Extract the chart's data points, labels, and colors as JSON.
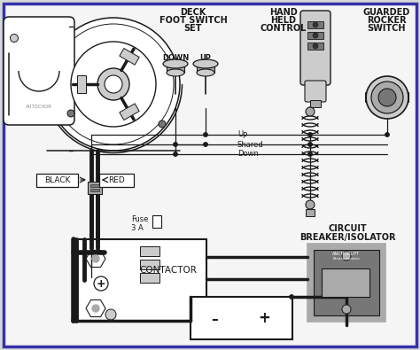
{
  "bg_outer": "#d8d8d8",
  "bg_inner": "#f5f5f5",
  "border_color": "#3333aa",
  "lc": "#1a1a1a",
  "gray_light": "#cccccc",
  "gray_med": "#aaaaaa",
  "gray_dark": "#777777",
  "labels": {
    "deck_foot": [
      "DECK",
      "FOOT SWITCH",
      "SET"
    ],
    "hand_held": [
      "HAND",
      "HELD",
      "CONTROL"
    ],
    "guarded": [
      "GUARDED",
      "ROCKER",
      "SWITCH"
    ],
    "circuit": [
      "CIRCUIT",
      "BREAKER/ISOLATOR"
    ],
    "contactor": "CONTACTOR",
    "fuse": [
      "Fuse",
      "3 A"
    ],
    "black": "BLACK",
    "red": "RED",
    "down_sw": "DOWN",
    "up_sw": "UP",
    "wire_up": "Up",
    "wire_shared": "Shared",
    "wire_down": "Down",
    "minus": "–",
    "plus": "+"
  }
}
